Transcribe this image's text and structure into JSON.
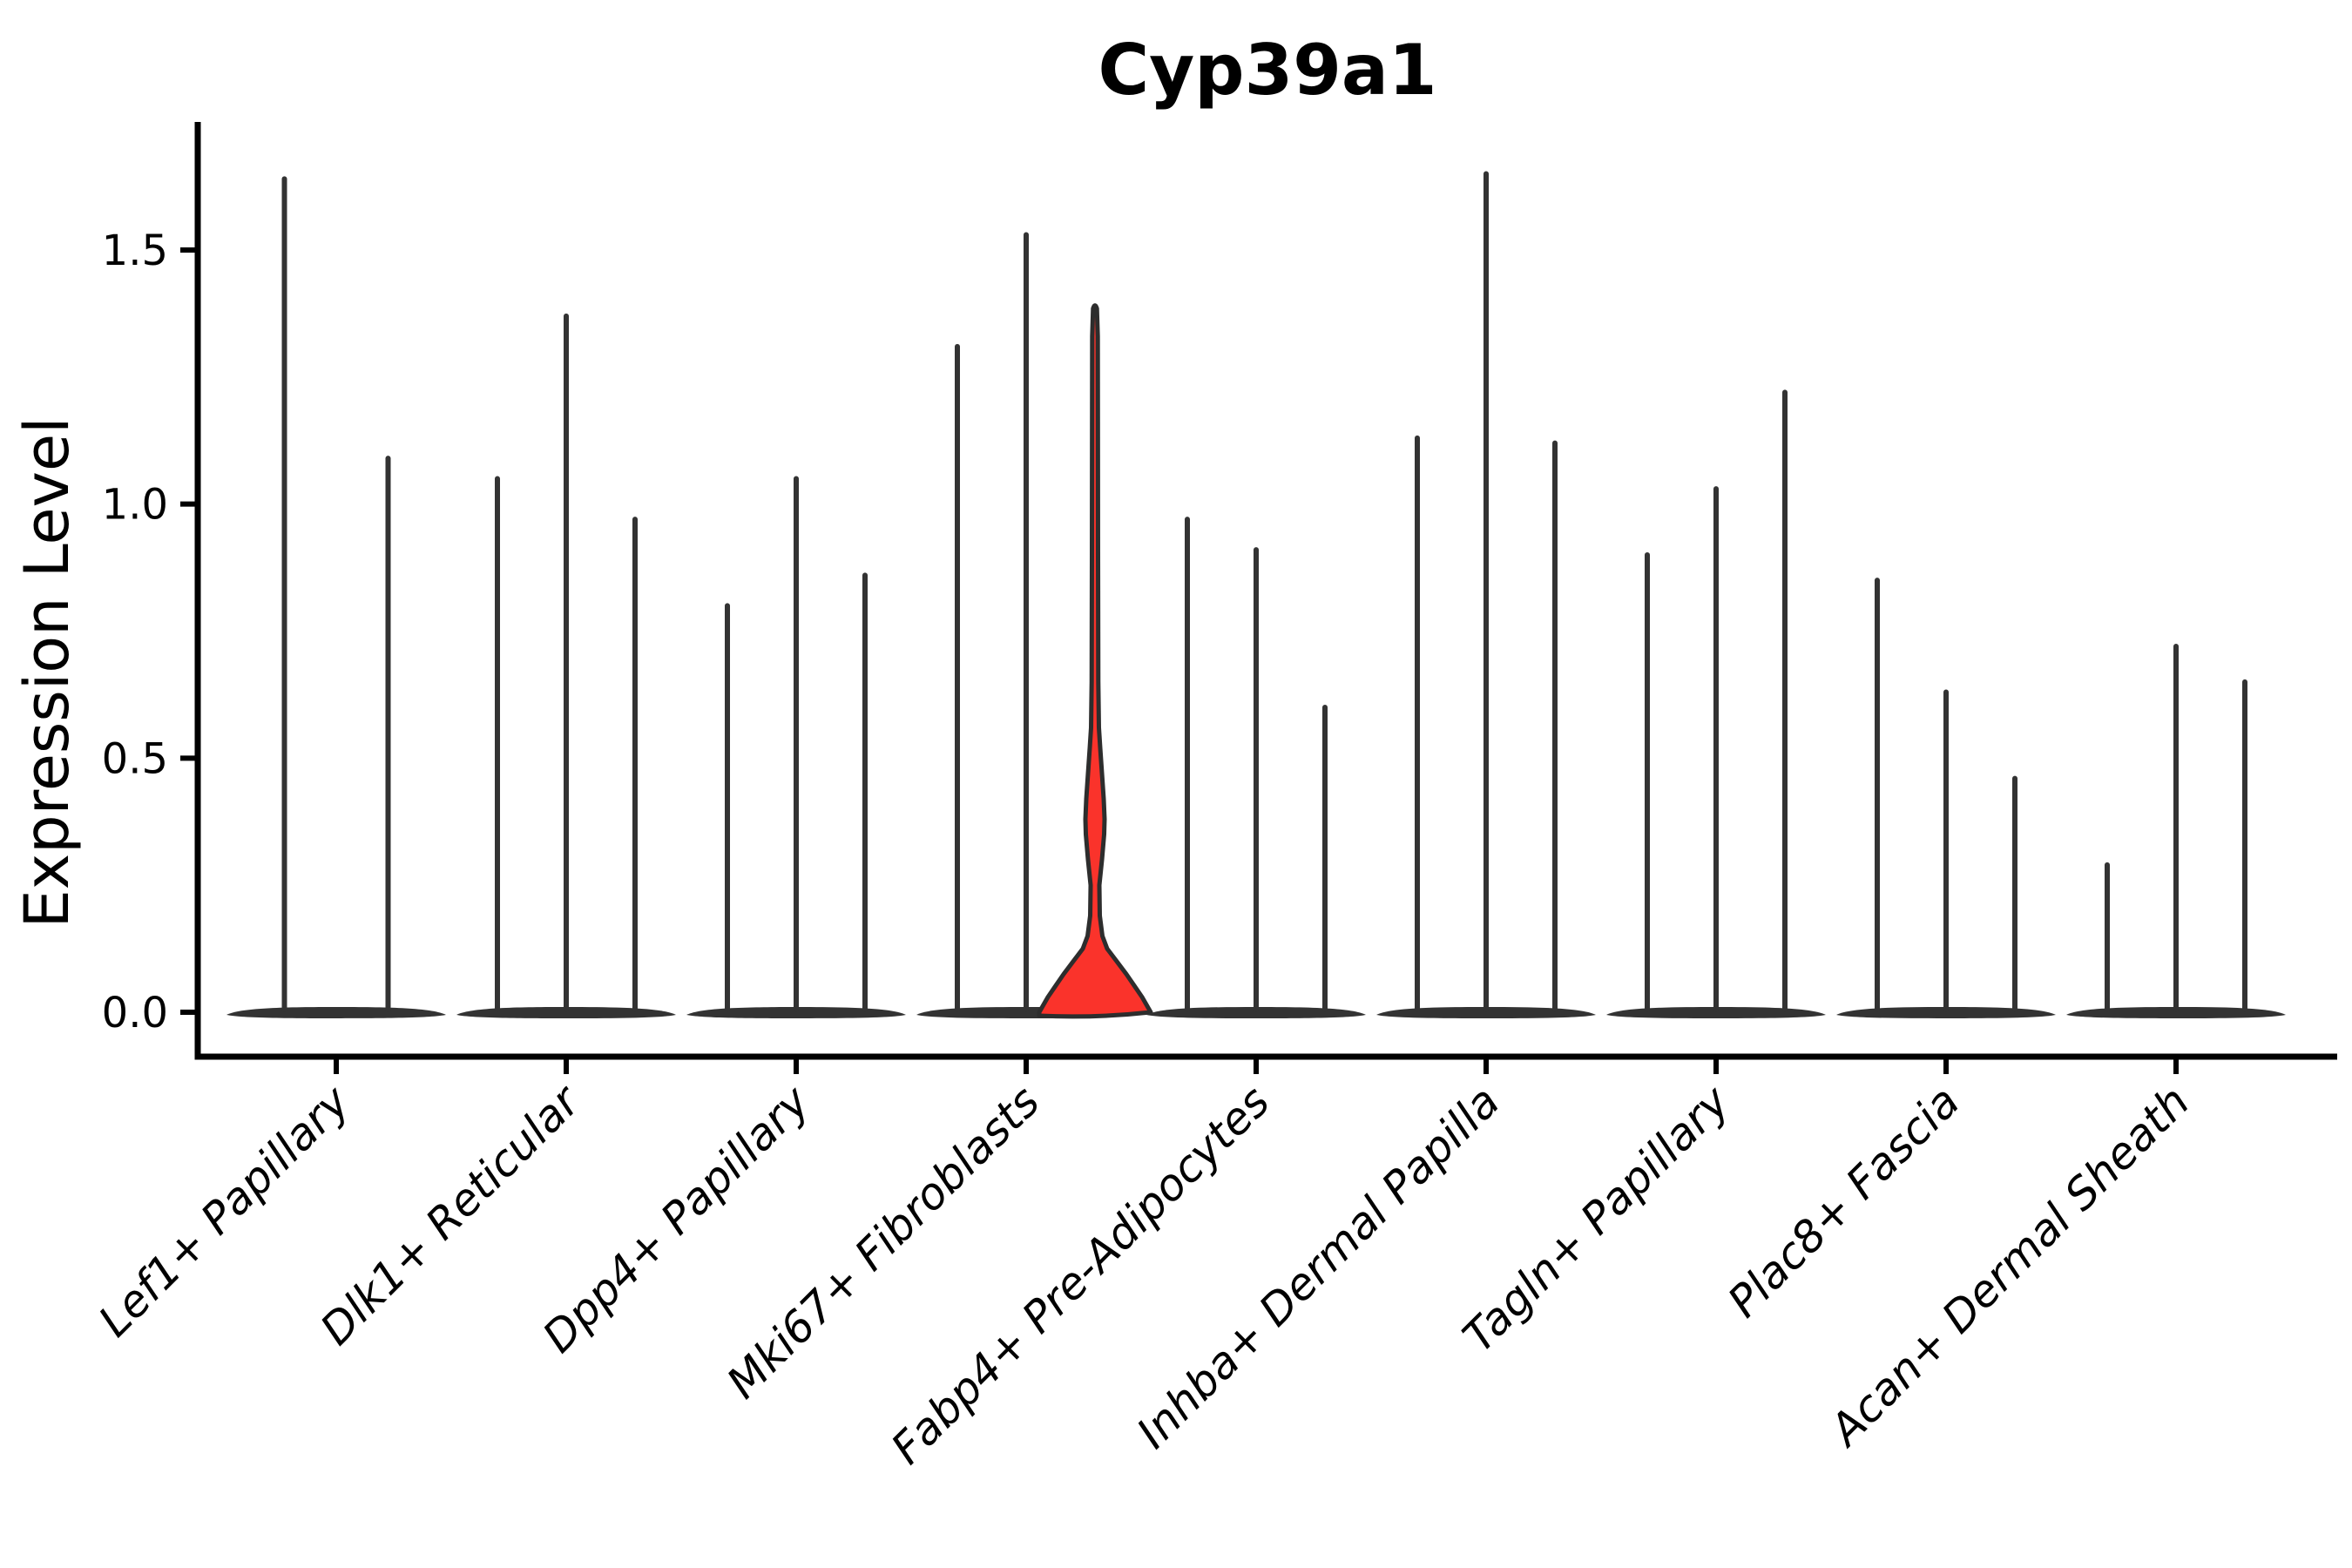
{
  "title": "Cyp39a1",
  "y_axis": {
    "label": "Expression Level",
    "tick_labels": [
      "1.5",
      "1.0",
      "0.5",
      "0.0"
    ]
  },
  "chart_data": {
    "type": "violin",
    "title": "Cyp39a1",
    "ylabel": "Expression Level",
    "xlabel": "",
    "ylim": [
      -0.08,
      1.74
    ],
    "yticks": [
      0.0,
      0.5,
      1.0,
      1.5
    ],
    "grid": false,
    "legend": null,
    "violin_color": "#333333",
    "highlight_color": "#fa332b",
    "outline_color": "#2d2d2d",
    "categories": [
      "Lef1+ Papillary",
      "Dlk1+ Reticular",
      "Dpp4+ Papillary",
      "Mki67+ Fibroblasts",
      "Fabp4+ Pre-Adipocytes",
      "Inhba+ Dermal Papilla",
      "Tagln+ Papillary",
      "Plac8+ Fascia",
      "Acan+ Dermal Sheath"
    ],
    "groups": [
      {
        "category": "Lef1+ Papillary",
        "max_values": [
          1.64,
          1.09
        ],
        "highlight_index": -1
      },
      {
        "category": "Dlk1+ Reticular",
        "max_values": [
          1.05,
          1.37,
          0.97
        ],
        "highlight_index": -1
      },
      {
        "category": "Dpp4+ Papillary",
        "max_values": [
          0.8,
          1.05,
          0.86
        ],
        "highlight_index": -1
      },
      {
        "category": "Mki67+ Fibroblasts",
        "max_values": [
          1.31,
          1.53,
          1.39
        ],
        "highlight_index": 2
      },
      {
        "category": "Fabp4+ Pre-Adipocytes",
        "max_values": [
          0.97,
          0.91,
          0.6
        ],
        "highlight_index": -1
      },
      {
        "category": "Inhba+ Dermal Papilla",
        "max_values": [
          1.13,
          1.65,
          1.12
        ],
        "highlight_index": -1
      },
      {
        "category": "Tagln+ Papillary",
        "max_values": [
          0.9,
          1.03,
          1.22
        ],
        "highlight_index": -1
      },
      {
        "category": "Plac8+ Fascia",
        "max_values": [
          0.85,
          0.63,
          0.46
        ],
        "highlight_index": -1
      },
      {
        "category": "Acan+ Dermal Sheath",
        "max_values": [
          0.29,
          0.72,
          0.65
        ],
        "highlight_index": -1
      }
    ],
    "highlighted_violin": {
      "category": "Mki67+ Fibroblasts",
      "position_in_group": 3,
      "max": 1.39,
      "belly": {
        "bottom": 0.25,
        "peak": 0.38,
        "top": 0.56
      },
      "note": "red-filled violin with visible density belly near zero; all other violins are thin dark spikes with flat bases at 0"
    }
  }
}
